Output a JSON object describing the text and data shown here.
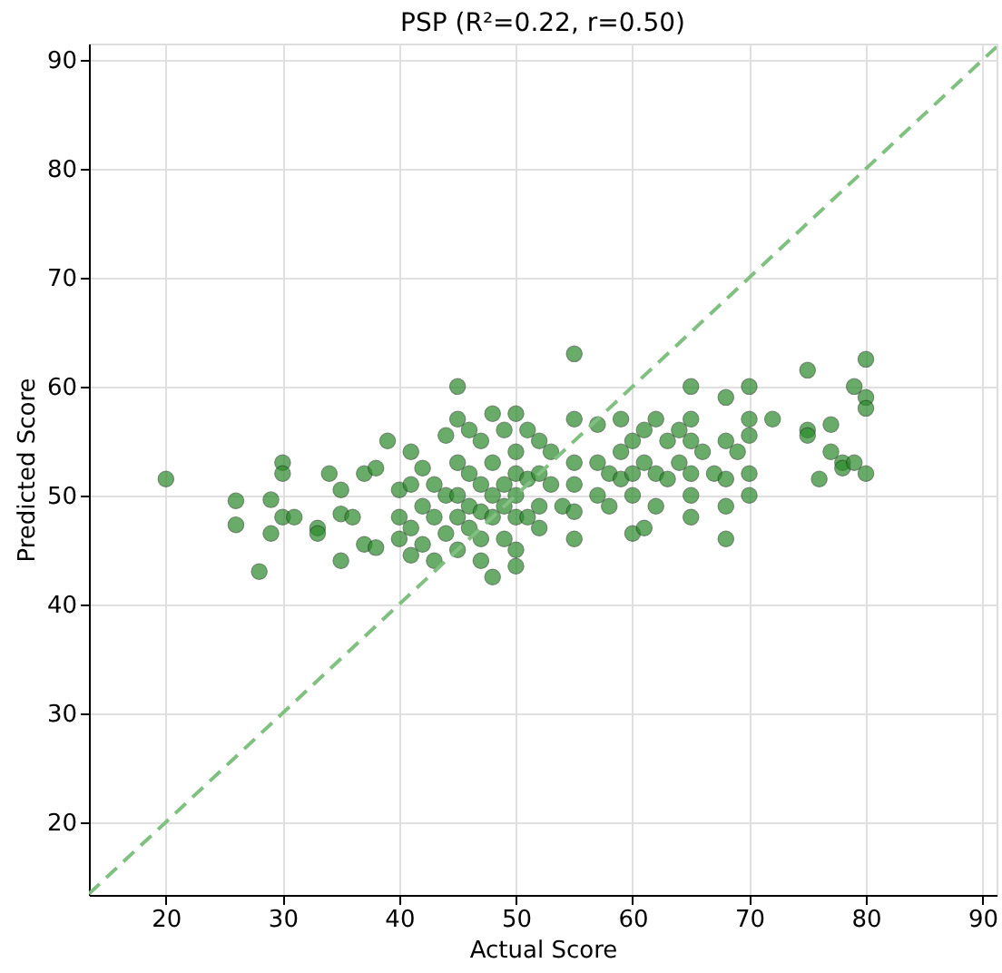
{
  "chart_data": {
    "type": "scatter",
    "title": "PSP  (R²=0.22, r=0.50)",
    "xlabel": "Actual Score",
    "ylabel": "Predicted Score",
    "xlim": [
      13.4,
      91.2
    ],
    "ylim": [
      13.3,
      91.5
    ],
    "xticks": [
      20,
      30,
      40,
      50,
      60,
      70,
      80,
      90
    ],
    "yticks": [
      20,
      30,
      40,
      50,
      60,
      70,
      80,
      90
    ],
    "grid": true,
    "series": [
      {
        "marker": "circle",
        "color": "#2a8a2a",
        "x": [
          20,
          26,
          26,
          28,
          29,
          29,
          30,
          30,
          30,
          31,
          33,
          33,
          34,
          35,
          35,
          35,
          36,
          37,
          37,
          38,
          38,
          39,
          40,
          40,
          40,
          41,
          41,
          41,
          41,
          42,
          42,
          42,
          43,
          43,
          43,
          44,
          44,
          44,
          45,
          45,
          45,
          45,
          45,
          45,
          46,
          46,
          46,
          46,
          47,
          47,
          47,
          47,
          47,
          48,
          48,
          48,
          48,
          48,
          49,
          49,
          49,
          49,
          50,
          50,
          50,
          50,
          50,
          50,
          50,
          51,
          51,
          51,
          52,
          52,
          52,
          52,
          53,
          53,
          54,
          55,
          55,
          55,
          55,
          55,
          55,
          57,
          57,
          57,
          58,
          58,
          59,
          59,
          59,
          60,
          60,
          60,
          60,
          61,
          61,
          61,
          62,
          62,
          62,
          63,
          63,
          64,
          64,
          65,
          65,
          65,
          65,
          65,
          65,
          66,
          67,
          68,
          68,
          68,
          68,
          68,
          69,
          70,
          70,
          70,
          70,
          70,
          72,
          75,
          75,
          75,
          76,
          77,
          77,
          78,
          78,
          79,
          79,
          80,
          80,
          80,
          80
        ],
        "values": [
          51.5,
          49.5,
          47.3,
          43,
          49.6,
          46.5,
          53,
          52,
          48,
          48,
          47,
          46.5,
          52,
          50.5,
          48.3,
          44,
          48,
          45.5,
          52,
          52.5,
          45.2,
          55,
          50.5,
          48,
          46,
          54,
          51,
          47,
          44.5,
          52.5,
          49,
          45.5,
          51,
          48,
          44,
          55.5,
          50,
          46.5,
          60,
          57,
          53,
          50,
          48,
          45,
          56,
          52,
          49,
          47,
          55,
          51,
          48.5,
          46,
          44,
          57.5,
          53,
          50,
          48,
          42.5,
          56,
          51,
          49,
          46,
          57.5,
          54,
          52,
          50,
          48,
          45,
          43.5,
          56,
          51.5,
          48,
          55,
          52,
          49,
          47,
          54,
          51,
          49,
          63,
          57,
          53,
          51,
          48.5,
          46,
          56.5,
          53,
          50,
          52,
          49,
          57,
          54,
          51.5,
          55,
          52,
          50,
          46.5,
          56,
          53,
          47,
          57,
          52,
          49,
          55,
          51.5,
          56,
          53,
          60,
          57,
          55,
          52,
          50,
          48,
          54,
          52,
          59,
          55,
          51.5,
          49,
          46,
          54,
          60,
          57,
          55.5,
          52,
          50,
          57,
          61.5,
          56,
          55.5,
          51.5,
          56.5,
          54,
          53,
          52.5,
          60,
          53,
          62.5,
          59,
          58,
          52
        ]
      },
      {
        "type": "line",
        "color": "#80c080",
        "line_style": "dashed",
        "x": [
          13.4,
          91.2
        ],
        "values": [
          13.4,
          91.2
        ]
      }
    ]
  }
}
